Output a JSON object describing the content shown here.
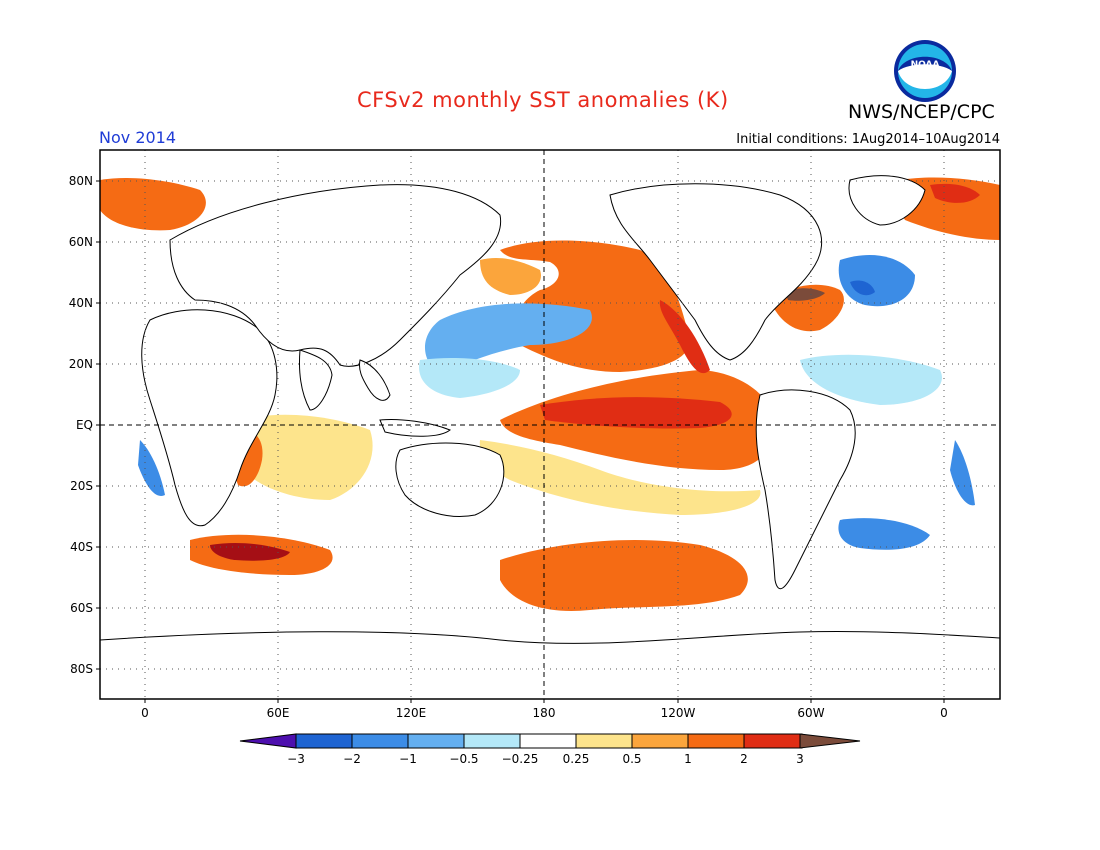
{
  "header": {
    "title": "CFSv2 monthly SST anomalies (K)",
    "agency": "NWS/NCEP/CPC",
    "period": "Nov 2014",
    "initial_conditions": "Initial conditions: 1Aug2014–10Aug2014",
    "logo_text": "NOAA"
  },
  "map": {
    "lat_labels": [
      "80N",
      "60N",
      "40N",
      "20N",
      "EQ",
      "20S",
      "40S",
      "60S",
      "80S"
    ],
    "lon_labels": [
      "0",
      "60E",
      "120E",
      "180",
      "120W",
      "60W",
      "0"
    ]
  },
  "colorbar": {
    "ticks": [
      "−3",
      "−2",
      "−1",
      "−0.5",
      "−0.25",
      "0.25",
      "0.5",
      "1",
      "2",
      "3"
    ],
    "colors": [
      "#4d0fae",
      "#1e64d2",
      "#3c8ce6",
      "#64aff0",
      "#b4e8f8",
      "#ffffff",
      "#fde48c",
      "#fba53c",
      "#f56b14",
      "#e02d14",
      "#a50f15",
      "#7b4b3a"
    ]
  }
}
